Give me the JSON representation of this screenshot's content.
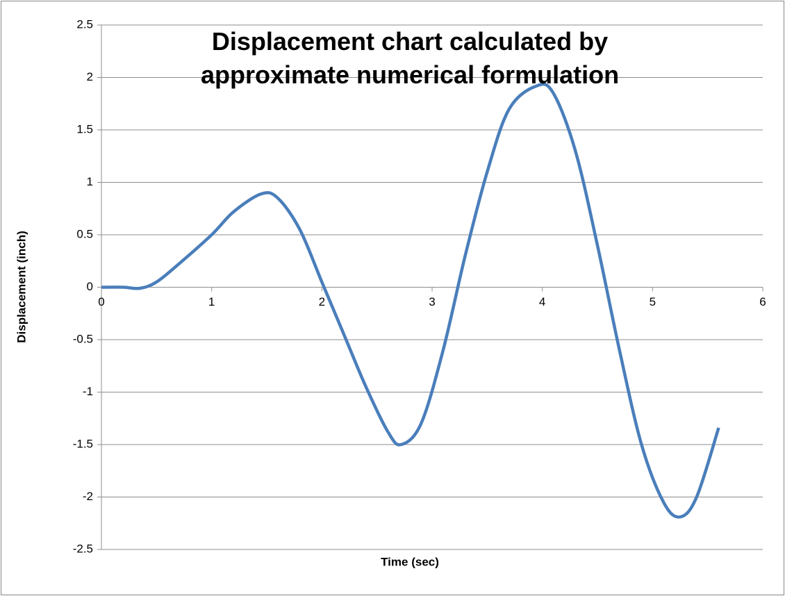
{
  "chart_data": {
    "type": "line",
    "title": "Displacement chart calculated by approximate numerical formulation",
    "x_label": "Time (sec)",
    "y_label": "Displacement (inch)",
    "x": [
      0,
      0.2,
      0.35,
      0.5,
      0.7,
      1.0,
      1.2,
      1.45,
      1.6,
      1.8,
      2.0,
      2.2,
      2.4,
      2.6,
      2.72,
      2.9,
      3.1,
      3.3,
      3.5,
      3.7,
      3.95,
      4.1,
      4.3,
      4.5,
      4.7,
      4.9,
      5.1,
      5.25,
      5.4,
      5.6
    ],
    "series": [
      {
        "name": "Displacement",
        "color": "#4a7ebb",
        "values": [
          0,
          0,
          -0.01,
          0.05,
          0.22,
          0.5,
          0.72,
          0.89,
          0.85,
          0.55,
          0.05,
          -0.45,
          -0.95,
          -1.38,
          -1.5,
          -1.3,
          -0.6,
          0.3,
          1.1,
          1.7,
          1.92,
          1.85,
          1.3,
          0.4,
          -0.6,
          -1.5,
          -2.05,
          -2.19,
          -2.0,
          -1.34
        ]
      }
    ],
    "xlim": [
      0,
      6
    ],
    "xticks": [
      0,
      1,
      2,
      3,
      4,
      5,
      6
    ],
    "ylim": [
      -2.5,
      2.5
    ],
    "yticks": [
      -2.5,
      -2,
      -1.5,
      -1,
      -0.5,
      0,
      0.5,
      1,
      1.5,
      2,
      2.5
    ],
    "grid": true
  }
}
